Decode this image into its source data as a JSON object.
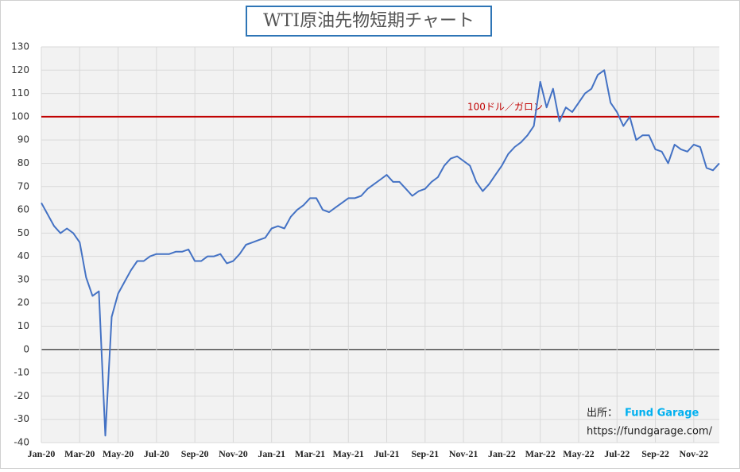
{
  "chart_data": {
    "type": "line",
    "title": "WTI原油先物短期チャート",
    "categories": [
      "Jan-20",
      null,
      null,
      null,
      null,
      null,
      "Mar-20",
      null,
      null,
      null,
      null,
      null,
      "May-20",
      null,
      null,
      null,
      null,
      null,
      "Jul-20",
      null,
      null,
      null,
      null,
      null,
      "Sep-20",
      null,
      null,
      null,
      null,
      null,
      "Nov-20",
      null,
      null,
      null,
      null,
      null,
      "Jan-21",
      null,
      null,
      null,
      null,
      null,
      "Mar-21",
      null,
      null,
      null,
      null,
      null,
      "May-21",
      null,
      null,
      null,
      null,
      null,
      "Jul-21",
      null,
      null,
      null,
      null,
      null,
      "Sep-21",
      null,
      null,
      null,
      null,
      null,
      "Nov-21",
      null,
      null,
      null,
      null,
      null,
      "Jan-22",
      null,
      null,
      null,
      null,
      null,
      "Mar-22",
      null,
      null,
      null,
      null,
      null,
      "May-22",
      null,
      null,
      null,
      null,
      null,
      "Jul-22",
      null,
      null,
      null,
      null,
      null,
      "Sep-22",
      null,
      null,
      null,
      null,
      null,
      "Nov-22",
      null,
      null,
      null,
      null
    ],
    "series": [
      {
        "name": "WTI",
        "color": "#4472c4",
        "values": [
          63,
          58,
          53,
          50,
          52,
          50,
          46,
          31,
          23,
          25,
          -37,
          14,
          24,
          29,
          34,
          38,
          38,
          40,
          41,
          41,
          41,
          42,
          42,
          43,
          38,
          38,
          40,
          40,
          41,
          37,
          38,
          41,
          45,
          46,
          47,
          48,
          52,
          53,
          52,
          57,
          60,
          62,
          65,
          65,
          60,
          59,
          61,
          63,
          65,
          65,
          66,
          69,
          71,
          73,
          75,
          72,
          72,
          69,
          66,
          68,
          69,
          72,
          74,
          79,
          82,
          83,
          81,
          79,
          72,
          68,
          71,
          75,
          79,
          84,
          87,
          89,
          92,
          96,
          115,
          104,
          112,
          98,
          104,
          102,
          106,
          110,
          112,
          118,
          120,
          106,
          102,
          96,
          100,
          90,
          92,
          92,
          86,
          85,
          80,
          88,
          86,
          85,
          88,
          87,
          78,
          77,
          80
        ]
      }
    ],
    "ylim": [
      -40,
      130
    ],
    "yticks": [
      -40,
      -30,
      -20,
      -10,
      0,
      10,
      20,
      30,
      40,
      50,
      60,
      70,
      80,
      90,
      100,
      110,
      120,
      130
    ],
    "grid": true,
    "negative_tick_color": "#c00000",
    "reference_line": {
      "value": 100,
      "label": "100ドル／ガロン",
      "color": "#c00000"
    },
    "source_label": "出所：",
    "source_name": "Fund Garage",
    "source_url": "https://fundgarage.com/"
  }
}
